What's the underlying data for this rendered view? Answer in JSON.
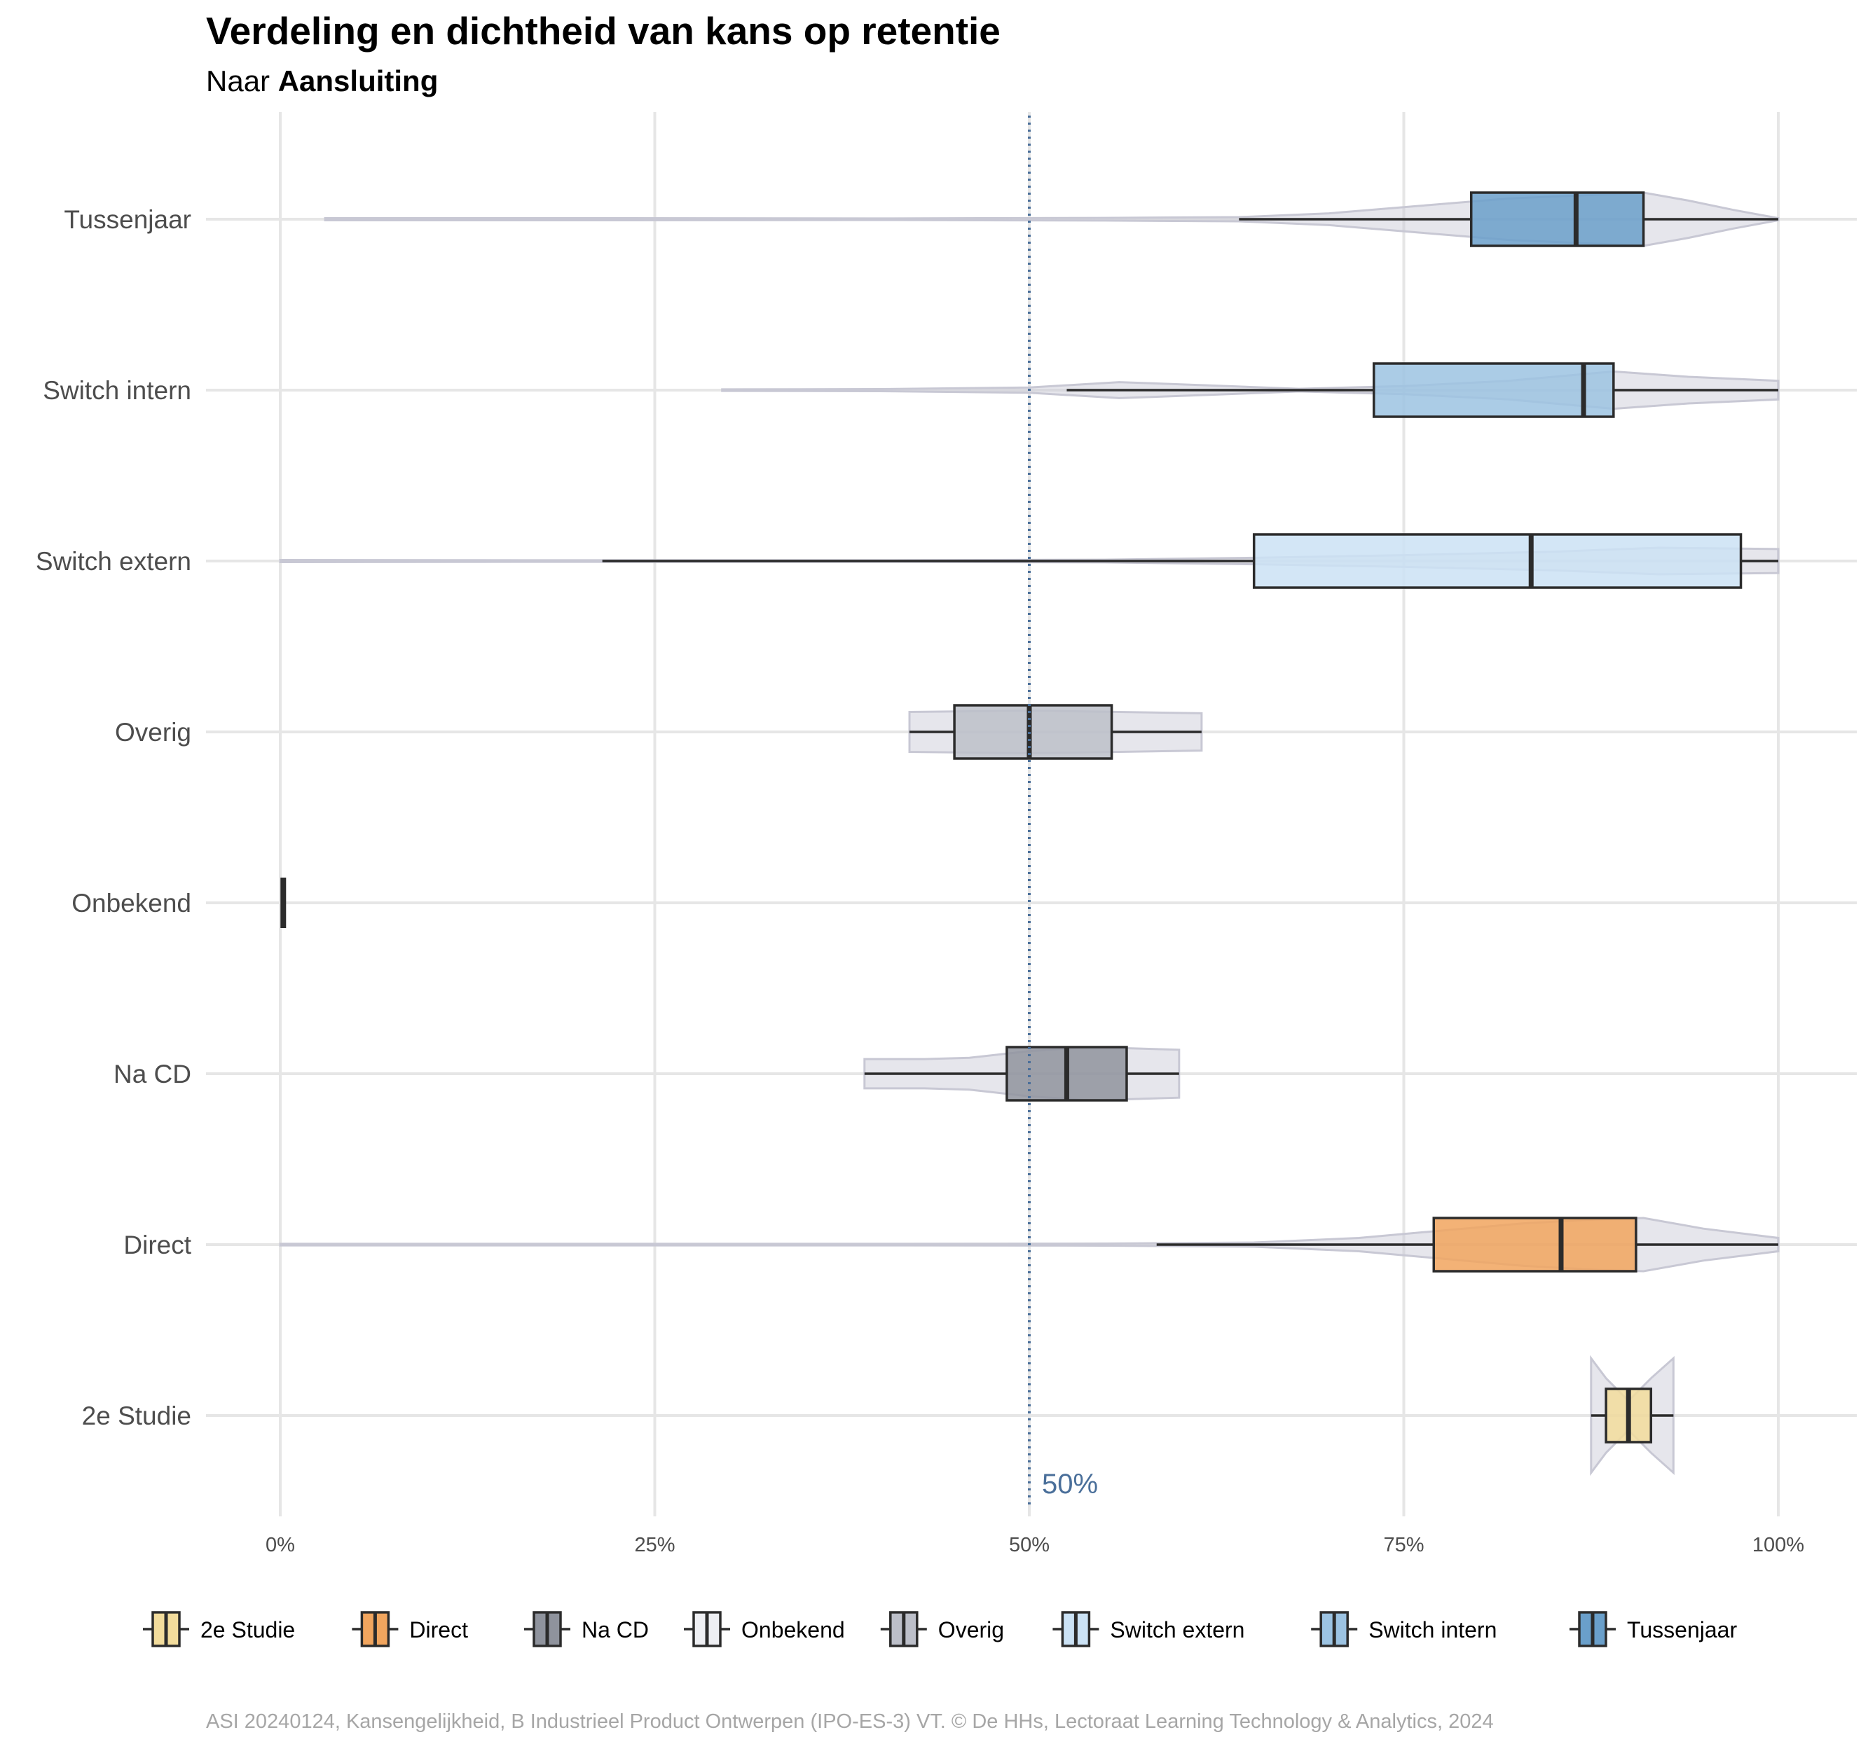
{
  "title": "Verdeling en dichtheid van kans op retentie",
  "subtitle": {
    "prefix": "Naar ",
    "emphasis": "Aansluiting"
  },
  "caption": "ASI 20240124, Kansengelijkheid, B Industrieel Product Ontwerpen (IPO-ES-3) VT. © De HHs, Lectoraat Learning Technology & Analytics, 2024",
  "chart_data": {
    "type": "violin-box",
    "orientation": "horizontal",
    "title": "Verdeling en dichtheid van kans op retentie",
    "subtitle": "Naar Aansluiting",
    "xlabel": "",
    "ylabel": "",
    "xlim": [
      0,
      100
    ],
    "x_ticks": [
      0,
      25,
      50,
      75,
      100
    ],
    "x_tick_labels": [
      "0%",
      "25%",
      "50%",
      "75%",
      "100%"
    ],
    "grid": true,
    "legend_position": "bottom",
    "reference_line": {
      "value": 50,
      "label": "50%",
      "color": "#4a6f9a",
      "style": "dotted"
    },
    "violin_color": "#c8c8d4",
    "categories": [
      "Tussenjaar",
      "Switch intern",
      "Switch extern",
      "Overig",
      "Onbekend",
      "Na CD",
      "Direct",
      "2e Studie"
    ],
    "legend": [
      {
        "name": "2e Studie",
        "color": "#f2dc9c"
      },
      {
        "name": "Direct",
        "color": "#f1a55e"
      },
      {
        "name": "Na CD",
        "color": "#8f939d"
      },
      {
        "name": "Onbekend",
        "color": "#eeeff3"
      },
      {
        "name": "Overig",
        "color": "#bcbfc9"
      },
      {
        "name": "Switch extern",
        "color": "#cbe2f5"
      },
      {
        "name": "Switch intern",
        "color": "#9cc3e2"
      },
      {
        "name": "Tussenjaar",
        "color": "#6a9fca"
      }
    ],
    "series": [
      {
        "name": "Tussenjaar",
        "color": "#6a9fca",
        "box": {
          "whisker_low": 64,
          "q1": 79.5,
          "median": 86.5,
          "q3": 91,
          "whisker_high": 100
        },
        "violin": [
          [
            3,
            0.04
          ],
          [
            20,
            0.04
          ],
          [
            40,
            0.03
          ],
          [
            55,
            0.05
          ],
          [
            64,
            0.08
          ],
          [
            70,
            0.22
          ],
          [
            76,
            0.5
          ],
          [
            82,
            0.78
          ],
          [
            87,
            0.9
          ],
          [
            91,
            1
          ],
          [
            94,
            0.7
          ],
          [
            97,
            0.35
          ],
          [
            100,
            0.04
          ]
        ]
      },
      {
        "name": "Switch intern",
        "color": "#9cc3e2",
        "box": {
          "whisker_low": 52.5,
          "q1": 73,
          "median": 87,
          "q3": 89,
          "whisker_high": 100
        },
        "violin": [
          [
            29.5,
            0.03
          ],
          [
            40,
            0.04
          ],
          [
            50,
            0.1
          ],
          [
            56,
            0.3
          ],
          [
            62,
            0.18
          ],
          [
            68,
            0.05
          ],
          [
            75,
            0.15
          ],
          [
            82,
            0.35
          ],
          [
            89,
            0.7
          ],
          [
            94,
            0.5
          ],
          [
            100,
            0.35
          ]
        ]
      },
      {
        "name": "Switch extern",
        "color": "#cbe2f5",
        "box": {
          "whisker_low": 21.5,
          "q1": 65,
          "median": 83.5,
          "q3": 97.5,
          "whisker_high": 100
        },
        "violin": [
          [
            0,
            0.04
          ],
          [
            20,
            0.03
          ],
          [
            40,
            0.03
          ],
          [
            55,
            0.05
          ],
          [
            65,
            0.12
          ],
          [
            75,
            0.22
          ],
          [
            85,
            0.35
          ],
          [
            92,
            0.5
          ],
          [
            100,
            0.45
          ]
        ]
      },
      {
        "name": "Overig",
        "color": "#bcbfc9",
        "box": {
          "whisker_low": 42,
          "q1": 45,
          "median": 50,
          "q3": 55.5,
          "whisker_high": 61.5
        },
        "violin": [
          [
            42,
            0.75
          ],
          [
            50,
            0.8
          ],
          [
            56,
            0.75
          ],
          [
            61.5,
            0.7
          ]
        ]
      },
      {
        "name": "Onbekend",
        "color": "#eeeff3",
        "box": {
          "whisker_low": 0.2,
          "q1": 0.2,
          "median": 0.2,
          "q3": 0.2,
          "whisker_high": 0.2
        },
        "violin": []
      },
      {
        "name": "Na CD",
        "color": "#8f939d",
        "box": {
          "whisker_low": 39,
          "q1": 48.5,
          "median": 52.5,
          "q3": 56.5,
          "whisker_high": 60
        },
        "violin": [
          [
            39,
            0.55
          ],
          [
            43,
            0.55
          ],
          [
            46,
            0.6
          ],
          [
            50,
            0.85
          ],
          [
            54,
            1
          ],
          [
            57,
            0.95
          ],
          [
            60,
            0.9
          ]
        ]
      },
      {
        "name": "Direct",
        "color": "#f1a55e",
        "box": {
          "whisker_low": 58.5,
          "q1": 77,
          "median": 85.5,
          "q3": 90.5,
          "whisker_high": 100
        },
        "violin": [
          [
            0,
            0.03
          ],
          [
            20,
            0.03
          ],
          [
            40,
            0.03
          ],
          [
            55,
            0.04
          ],
          [
            65,
            0.08
          ],
          [
            72,
            0.25
          ],
          [
            78,
            0.55
          ],
          [
            83,
            0.8
          ],
          [
            88,
            0.95
          ],
          [
            91,
            1
          ],
          [
            95,
            0.6
          ],
          [
            100,
            0.25
          ]
        ]
      },
      {
        "name": "2e Studie",
        "color": "#f2dc9c",
        "box": {
          "whisker_low": 87.5,
          "q1": 88.5,
          "median": 90,
          "q3": 91.5,
          "whisker_high": 93
        },
        "violin": [
          [
            87.5,
            2.15
          ],
          [
            88.5,
            1.4
          ],
          [
            90,
            0.55
          ],
          [
            91.5,
            1.4
          ],
          [
            93,
            2.15
          ]
        ]
      }
    ]
  }
}
